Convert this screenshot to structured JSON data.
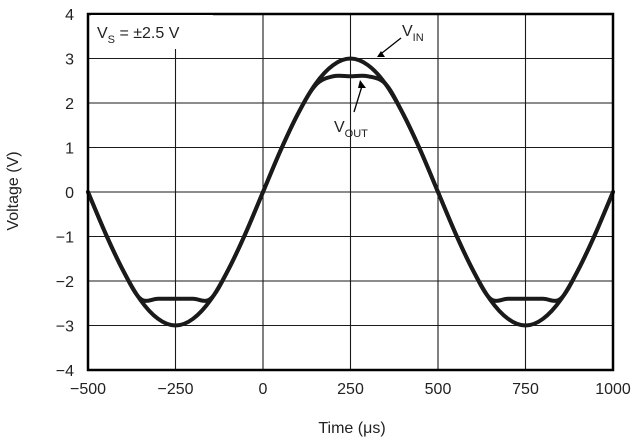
{
  "chart_data": {
    "type": "line",
    "title": "",
    "xlabel": "Time (μs)",
    "ylabel": "Voltage (V)",
    "xlim": [
      -500,
      1000
    ],
    "ylim": [
      -4,
      4
    ],
    "x_ticks": [
      -500,
      -250,
      0,
      250,
      500,
      750,
      1000
    ],
    "x_tick_labels": [
      "−500",
      "−250",
      "0",
      "250",
      "500",
      "750",
      "1000"
    ],
    "y_ticks": [
      -4,
      -3,
      -2,
      -1,
      0,
      1,
      2,
      3,
      4
    ],
    "y_tick_labels": [
      "−4",
      "−3",
      "−2",
      "−1",
      "0",
      "1",
      "2",
      "3",
      "4"
    ],
    "grid": true,
    "series": [
      {
        "name": "VIN",
        "x": [
          -500,
          -450,
          -400,
          -350,
          -300,
          -250,
          -200,
          -150,
          -100,
          -50,
          0,
          50,
          100,
          150,
          200,
          250,
          300,
          350,
          400,
          450,
          500,
          550,
          600,
          650,
          700,
          750,
          800,
          850,
          900,
          950,
          1000
        ],
        "values": [
          0,
          -0.93,
          -1.76,
          -2.43,
          -2.85,
          -3.0,
          -2.85,
          -2.43,
          -1.76,
          -0.93,
          0,
          0.93,
          1.76,
          2.43,
          2.85,
          3.0,
          2.85,
          2.43,
          1.76,
          0.93,
          0,
          -0.93,
          -1.76,
          -2.43,
          -2.85,
          -3.0,
          -2.85,
          -2.43,
          -1.76,
          -0.93,
          0
        ]
      },
      {
        "name": "VOUT",
        "x": [
          -500,
          -450,
          -400,
          -350,
          -300,
          -250,
          -200,
          -150,
          -100,
          -50,
          0,
          50,
          100,
          150,
          200,
          250,
          300,
          350,
          400,
          450,
          500,
          550,
          600,
          650,
          700,
          750,
          800,
          850,
          900,
          950,
          1000
        ],
        "values": [
          0,
          -0.93,
          -1.76,
          -2.4,
          -2.4,
          -2.4,
          -2.4,
          -2.4,
          -1.76,
          -0.93,
          0,
          0.93,
          1.76,
          2.4,
          2.6,
          2.6,
          2.6,
          2.43,
          1.76,
          0.93,
          0,
          -0.93,
          -1.76,
          -2.4,
          -2.4,
          -2.4,
          -2.4,
          -2.4,
          -1.76,
          -0.93,
          0
        ]
      }
    ],
    "annotations": [
      {
        "id": "supply",
        "text_main": "V",
        "text_sub": "S",
        "text_rest": " = ±2.5 V"
      },
      {
        "id": "vin",
        "text_main": "V",
        "text_sub": "IN"
      },
      {
        "id": "vout",
        "text_main": "V",
        "text_sub": "OUT"
      }
    ],
    "colors": {
      "trace": "#1a1a1a",
      "grid": "#1a1a1a",
      "frame": "#000000"
    }
  }
}
